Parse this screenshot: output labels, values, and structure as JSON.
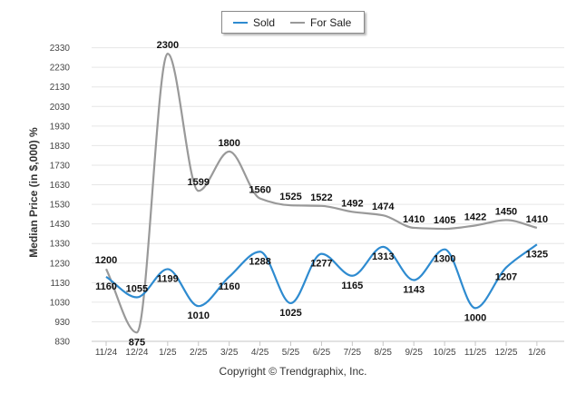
{
  "chart_data": {
    "type": "line",
    "ylabel": "Median Price (in $,000) %",
    "xlabel": "",
    "categories": [
      "11/24",
      "12/24",
      "1/25",
      "2/25",
      "3/25",
      "4/25",
      "5/25",
      "6/25",
      "7/25",
      "8/25",
      "9/25",
      "10/25",
      "11/25",
      "12/25",
      "1/26"
    ],
    "ylim": [
      830,
      2370
    ],
    "yticks": [
      830,
      930,
      1030,
      1130,
      1230,
      1330,
      1430,
      1530,
      1630,
      1730,
      1830,
      1930,
      2030,
      2130,
      2230,
      2330
    ],
    "grid": true,
    "legend_position": "top-center",
    "series": [
      {
        "name": "Sold",
        "color": "#2e8bd0",
        "values": [
          1160,
          1055,
          1199,
          1010,
          1160,
          1288,
          1025,
          1277,
          1165,
          1313,
          1143,
          1300,
          1000,
          1207,
          1325
        ]
      },
      {
        "name": "For Sale",
        "color": "#999999",
        "values": [
          1200,
          875,
          2300,
          1599,
          1800,
          1560,
          1525,
          1522,
          1492,
          1474,
          1410,
          1405,
          1422,
          1450,
          1410
        ]
      }
    ]
  },
  "copyright": "Copyright © Trendgraphix, Inc."
}
